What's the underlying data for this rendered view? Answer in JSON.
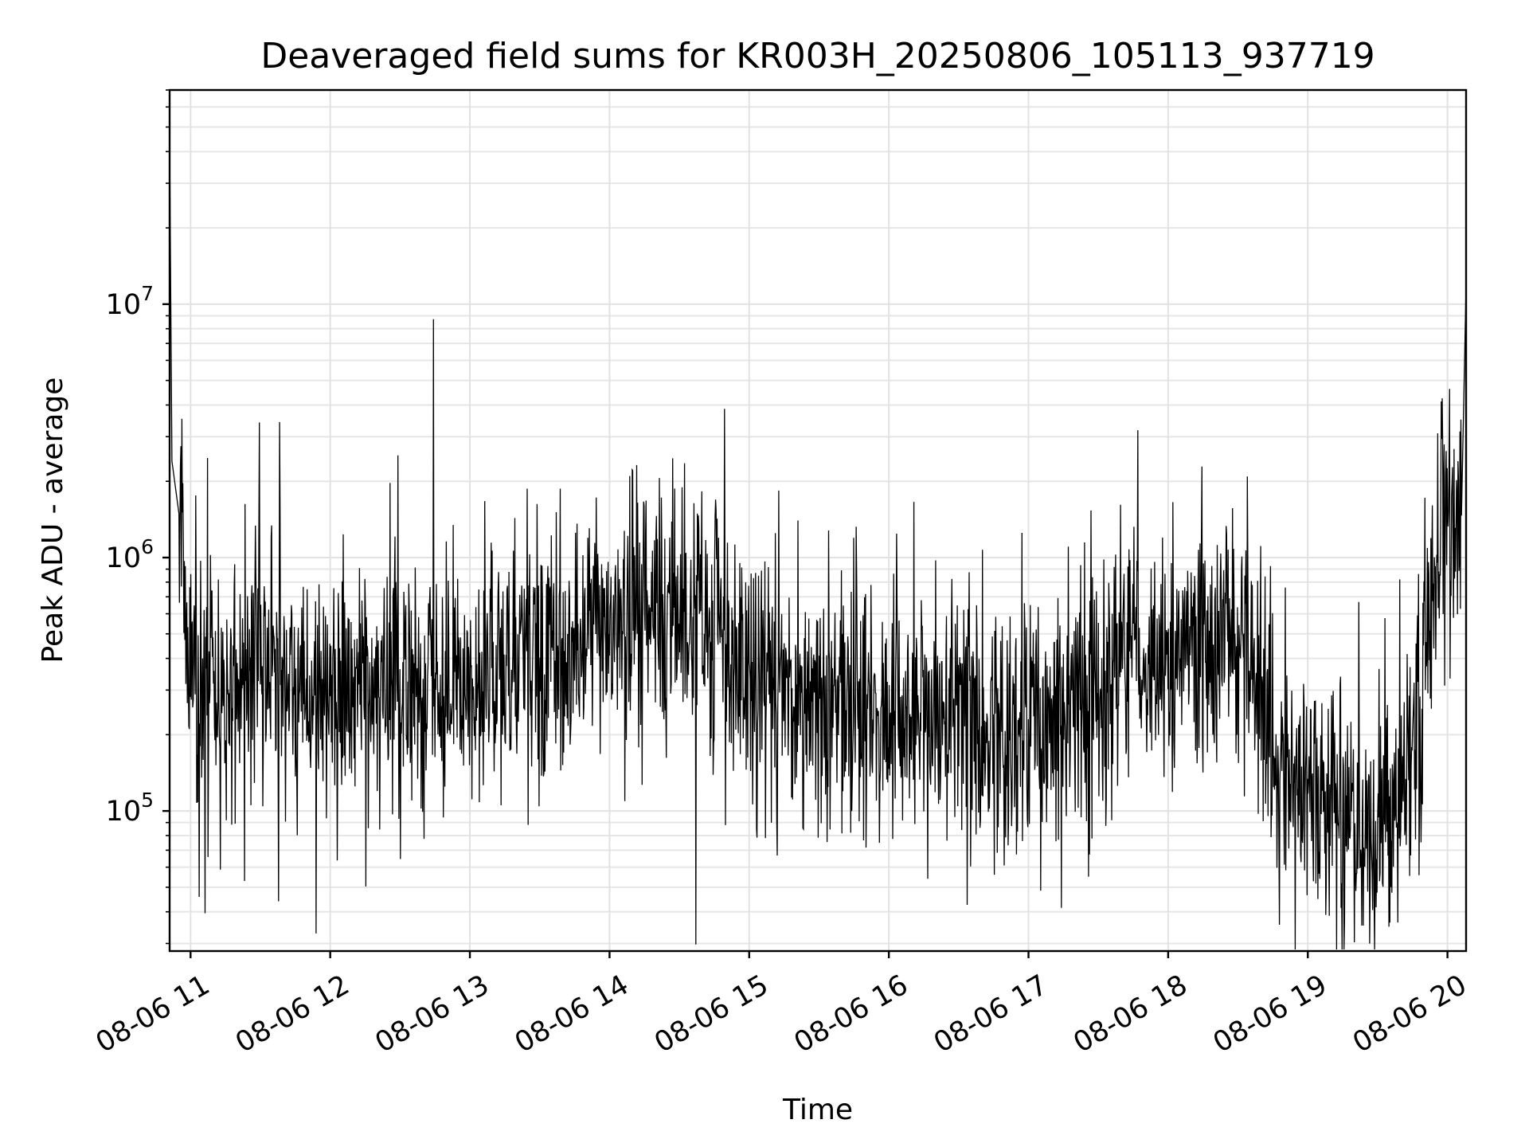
{
  "chart_data": {
    "type": "line",
    "title": "Deaveraged field sums for KR003H_20250806_105113_937719",
    "xlabel": "Time",
    "ylabel": "Peak ADU - average",
    "yscale": "log",
    "xlim": [
      "2025-08-06T10:51:00",
      "2025-08-06T20:08:00"
    ],
    "ylim": [
      28000,
      70000000
    ],
    "grid": true,
    "x_ticks": [
      {
        "value": "2025-08-06T11:00:00",
        "label": "08-06 11"
      },
      {
        "value": "2025-08-06T12:00:00",
        "label": "08-06 12"
      },
      {
        "value": "2025-08-06T13:00:00",
        "label": "08-06 13"
      },
      {
        "value": "2025-08-06T14:00:00",
        "label": "08-06 14"
      },
      {
        "value": "2025-08-06T15:00:00",
        "label": "08-06 15"
      },
      {
        "value": "2025-08-06T16:00:00",
        "label": "08-06 16"
      },
      {
        "value": "2025-08-06T17:00:00",
        "label": "08-06 17"
      },
      {
        "value": "2025-08-06T18:00:00",
        "label": "08-06 18"
      },
      {
        "value": "2025-08-06T19:00:00",
        "label": "08-06 19"
      },
      {
        "value": "2025-08-06T20:00:00",
        "label": "08-06 20"
      }
    ],
    "y_ticks": [
      {
        "value": 100000,
        "base": "10",
        "exp": "5"
      },
      {
        "value": 1000000,
        "base": "10",
        "exp": "6"
      },
      {
        "value": 10000000,
        "base": "10",
        "exp": "7"
      }
    ],
    "series": [
      {
        "color": "#000000",
        "points": [
          [
            "2025-08-06T10:51:00",
            45000000
          ],
          [
            "2025-08-06T10:52:00",
            2400000
          ],
          [
            "2025-08-06T10:55:00",
            1500000
          ],
          [
            "2025-08-06T11:00:00",
            400000
          ],
          [
            "2025-08-06T11:10:00",
            250000
          ],
          [
            "2025-08-06T11:20:00",
            350000
          ],
          [
            "2025-08-06T11:30:00",
            400000
          ],
          [
            "2025-08-06T11:40:00",
            350000
          ],
          [
            "2025-08-06T11:50:00",
            300000
          ],
          [
            "2025-08-06T12:00:00",
            250000
          ],
          [
            "2025-08-06T12:15:00",
            300000
          ],
          [
            "2025-08-06T12:30:00",
            280000
          ],
          [
            "2025-08-06T12:45:00",
            330000
          ],
          [
            "2025-08-06T13:00:00",
            350000
          ],
          [
            "2025-08-06T13:15:00",
            380000
          ],
          [
            "2025-08-06T13:30:00",
            400000
          ],
          [
            "2025-08-06T13:45:00",
            420000
          ],
          [
            "2025-08-06T14:00:00",
            480000
          ],
          [
            "2025-08-06T14:15:00",
            650000
          ],
          [
            "2025-08-06T14:30:00",
            550000
          ],
          [
            "2025-08-06T14:45:00",
            480000
          ],
          [
            "2025-08-06T15:00:00",
            380000
          ],
          [
            "2025-08-06T15:15:00",
            320000
          ],
          [
            "2025-08-06T15:30:00",
            280000
          ],
          [
            "2025-08-06T15:45:00",
            250000
          ],
          [
            "2025-08-06T16:00:00",
            220000
          ],
          [
            "2025-08-06T16:15:00",
            240000
          ],
          [
            "2025-08-06T16:30:00",
            230000
          ],
          [
            "2025-08-06T16:45:00",
            200000
          ],
          [
            "2025-08-06T17:00:00",
            220000
          ],
          [
            "2025-08-06T17:15:00",
            240000
          ],
          [
            "2025-08-06T17:30:00",
            260000
          ],
          [
            "2025-08-06T17:45:00",
            450000
          ],
          [
            "2025-08-06T18:00:00",
            450000
          ],
          [
            "2025-08-06T18:15:00",
            500000
          ],
          [
            "2025-08-06T18:30:00",
            480000
          ],
          [
            "2025-08-06T18:45:00",
            220000
          ],
          [
            "2025-08-06T19:00:00",
            110000
          ],
          [
            "2025-08-06T19:15:00",
            100000
          ],
          [
            "2025-08-06T19:30:00",
            70000
          ],
          [
            "2025-08-06T19:40:00",
            110000
          ],
          [
            "2025-08-06T19:50:00",
            350000
          ],
          [
            "2025-08-06T19:55:00",
            1000000
          ],
          [
            "2025-08-06T20:00:00",
            1500000
          ],
          [
            "2025-08-06T20:06:00",
            1300000
          ],
          [
            "2025-08-06T20:08:00",
            12000000
          ]
        ]
      }
    ]
  }
}
